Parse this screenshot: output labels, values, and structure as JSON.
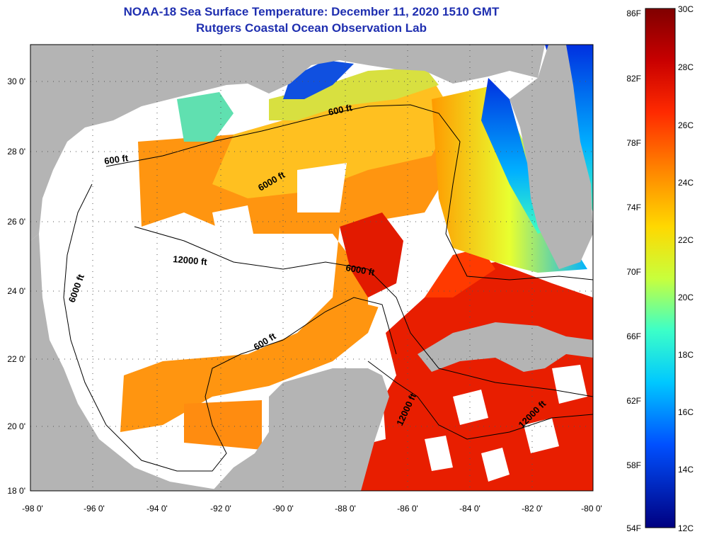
{
  "title": {
    "line1": "NOAA-18 Sea Surface Temperature:  December 11, 2020 1510 GMT",
    "line2": "Rutgers Coastal Ocean Observation Lab"
  },
  "axes": {
    "lon_labels": [
      "-98 0'",
      "-96 0'",
      "-94 0'",
      "-92 0'",
      "-90 0'",
      "-88 0'",
      "-86 0'",
      "-84 0'",
      "-82 0'",
      "-80 0'"
    ],
    "lat_labels": [
      "30 0'",
      "28 0'",
      "26 0'",
      "24 0'",
      "22 0'",
      "20 0'",
      "18 0'"
    ]
  },
  "depth_contours": [
    {
      "text": "600 ft"
    },
    {
      "text": "600 ft"
    },
    {
      "text": "6000 ft"
    },
    {
      "text": "12000 ft"
    },
    {
      "text": "6000 ft"
    },
    {
      "text": "6000 ft"
    },
    {
      "text": "600 ft"
    },
    {
      "text": "12000 ft"
    },
    {
      "text": "12000 ft"
    }
  ],
  "colorbar": {
    "fahrenheit": [
      "86F",
      "82F",
      "78F",
      "74F",
      "70F",
      "66F",
      "62F",
      "58F",
      "54F"
    ],
    "celsius": [
      "30C",
      "28C",
      "26C",
      "24C",
      "22C",
      "20C",
      "18C",
      "16C",
      "14C",
      "12C"
    ]
  },
  "colors": {
    "title": "#1f2fb0",
    "land": "#b4b4b4",
    "ocean_cloud": "#ffffff"
  }
}
